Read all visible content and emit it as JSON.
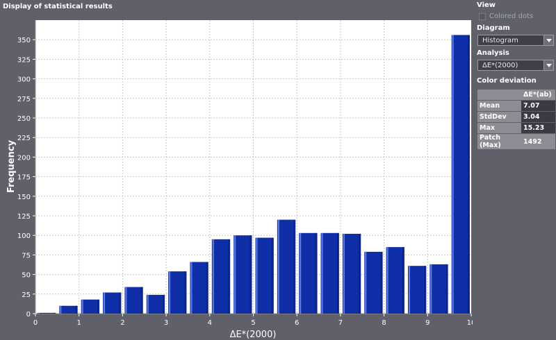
{
  "window": {
    "title": "Display of statistical results"
  },
  "panel": {
    "view_title": "View",
    "colored_dots_label": "Colored dots",
    "colored_dots_checked": false,
    "diagram_title": "Diagram",
    "diagram_value": "Histogram",
    "analysis_title": "Analysis",
    "analysis_value": "ΔE*(2000)",
    "color_deviation_title": "Color deviation",
    "table": {
      "header": [
        "",
        "ΔE*(ab)"
      ],
      "rows": [
        {
          "label": "Mean",
          "value": "7.07"
        },
        {
          "label": "StdDev",
          "value": "3.04"
        },
        {
          "label": "Max",
          "value": "15.23"
        },
        {
          "label": "Patch (Max)",
          "value": "1492"
        }
      ]
    }
  },
  "chart_data": {
    "type": "bar",
    "xlabel": "ΔE*(2000)",
    "ylabel": "Frequency",
    "xlim": [
      0,
      10
    ],
    "ylim": [
      0,
      375
    ],
    "xticks": [
      "0",
      "1",
      "2",
      "3",
      "4",
      "5",
      "6",
      "7",
      "8",
      "9",
      "10"
    ],
    "yticks": [
      "0",
      "25",
      "50",
      "75",
      "100",
      "125",
      "150",
      "175",
      "200",
      "225",
      "250",
      "275",
      "300",
      "325",
      "350"
    ],
    "grid": true,
    "bin_width": 0.5,
    "bins_start": [
      0,
      0.5,
      1,
      1.5,
      2,
      2.5,
      3,
      3.5,
      4,
      4.5,
      5,
      5.5,
      6,
      6.5,
      7,
      7.5,
      8,
      8.5,
      9,
      9.5
    ],
    "values": [
      1,
      10,
      18,
      27,
      34,
      24,
      54,
      66,
      95,
      100,
      97,
      120,
      103,
      103,
      102,
      79,
      85,
      61,
      63,
      356
    ],
    "colors": {
      "bar": "#0f2fa8",
      "plot_bg": "#ffffff",
      "grid": "#c8c8c8"
    }
  }
}
